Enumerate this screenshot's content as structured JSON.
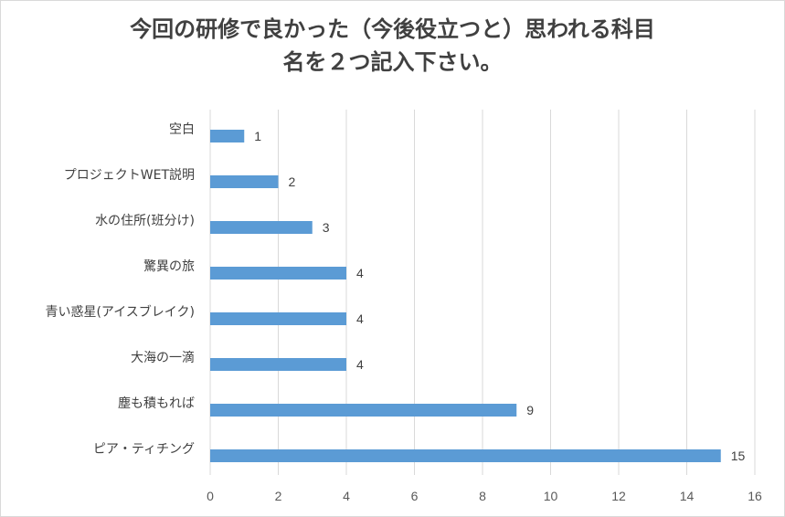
{
  "chart_data": {
    "type": "bar",
    "orientation": "horizontal",
    "title_lines": [
      "今回の研修で良かった（今後役立つと）思われる科目",
      "名を２つ記入下さい。"
    ],
    "categories": [
      "空白",
      "プロジェクトWET説明",
      "水の住所(班分け)",
      "驚異の旅",
      "青い惑星(アイスブレイク)",
      "大海の一滴",
      "塵も積もれば",
      "ピア・ティチング"
    ],
    "values": [
      1,
      2,
      3,
      4,
      4,
      4,
      9,
      15
    ],
    "xlim": [
      0,
      16
    ],
    "x_ticks": [
      0,
      2,
      4,
      6,
      8,
      10,
      12,
      14,
      16
    ],
    "data_labels": true,
    "grid": "vertical",
    "bar_color": "#5b9bd5",
    "grid_color": "#d9d9d9"
  }
}
